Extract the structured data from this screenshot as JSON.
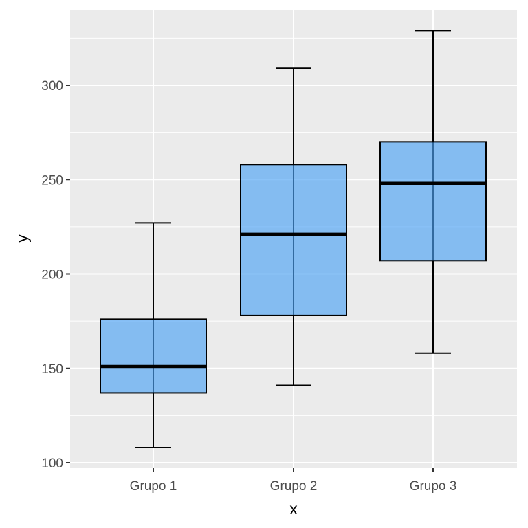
{
  "chart_data": {
    "type": "boxplot",
    "title": "",
    "xlabel": "x",
    "ylabel": "y",
    "categories": [
      "Grupo 1",
      "Grupo 2",
      "Grupo 3"
    ],
    "series": [
      {
        "name": "Grupo 1",
        "whisker_low": 108,
        "q1": 137,
        "median": 151,
        "q3": 176,
        "whisker_high": 227
      },
      {
        "name": "Grupo 2",
        "whisker_low": 141,
        "q1": 178,
        "median": 221,
        "q3": 258,
        "whisker_high": 309
      },
      {
        "name": "Grupo 3",
        "whisker_low": 158,
        "q1": 207,
        "median": 248,
        "q3": 270,
        "whisker_high": 329
      }
    ],
    "y_ticks": [
      100,
      150,
      200,
      250,
      300
    ],
    "y_minor": [
      125,
      175,
      225,
      275,
      325
    ],
    "ylim": [
      97,
      340
    ],
    "grid": true,
    "legend": "none",
    "colors": {
      "box_fill": "#4da3f5",
      "box_fill_opacity": 0.65,
      "box_stroke": "#000000",
      "panel_bg": "#ebebeb",
      "grid": "#ffffff"
    }
  }
}
